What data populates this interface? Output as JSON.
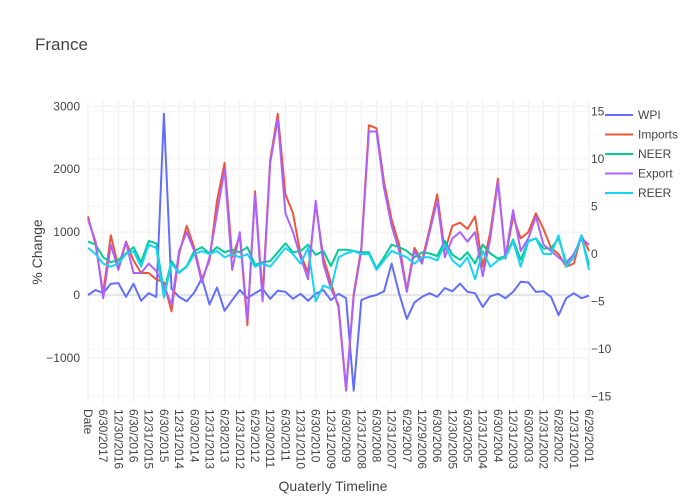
{
  "chart_data": {
    "type": "line",
    "title": "France",
    "xlabel": "Quaterly Timeline",
    "ylabel": "% Change",
    "ylim": [
      -1700,
      3100
    ],
    "y2lim": [
      -15.6,
      16.2
    ],
    "y_ticks": [
      3000,
      2000,
      1000,
      0,
      -1000
    ],
    "y_tick_labels": [
      "3000",
      "2000",
      "1000",
      "0",
      "−1000"
    ],
    "y2_ticks": [
      15,
      10,
      5,
      0,
      -5,
      -10,
      -15
    ],
    "y2_tick_labels": [
      "15",
      "10",
      "5",
      "0",
      "−5",
      "−10",
      "−15"
    ],
    "x_tick_labels": [
      "Date",
      "6/30/2017",
      "12/30/2016",
      "6/30/2016",
      "12/31/2015",
      "6/30/2015",
      "12/31/2014",
      "6/30/2014",
      "12/31/2013",
      "6/28/2013",
      "12/31/2012",
      "6/29/2012",
      "12/30/2011",
      "6/30/2011",
      "12/31/2010",
      "6/30/2010",
      "12/31/2009",
      "6/30/2009",
      "12/31/2008",
      "6/30/2008",
      "12/31/2007",
      "6/29/2007",
      "12/29/2006",
      "6/30/2006",
      "12/30/2005",
      "6/30/2005",
      "12/31/2004",
      "6/30/2004",
      "12/31/2003",
      "6/30/2003",
      "12/31/2002",
      "6/28/2002",
      "12/31/2001",
      "6/29/2001"
    ],
    "n_points": 67,
    "grid": true,
    "legend_position": "right",
    "series": [
      {
        "name": "WPI",
        "axis": "y",
        "color": "#636efa",
        "values": [
          0,
          80,
          30,
          180,
          190,
          -30,
          180,
          -90,
          30,
          -30,
          2880,
          100,
          -30,
          -100,
          40,
          270,
          -150,
          120,
          -250,
          -80,
          80,
          -50,
          30,
          100,
          -60,
          70,
          50,
          -60,
          20,
          -90,
          20,
          80,
          -80,
          20,
          -50,
          -1520,
          -80,
          -30,
          0,
          60,
          500,
          20,
          -380,
          -120,
          -30,
          30,
          -30,
          110,
          60,
          180,
          50,
          30,
          -190,
          -20,
          20,
          -50,
          50,
          210,
          200,
          50,
          60,
          -30,
          -320,
          -50,
          30,
          -50,
          -10
        ]
      },
      {
        "name": "Imports",
        "axis": "y",
        "color": "#ef553b",
        "values": [
          1250,
          800,
          30,
          950,
          450,
          850,
          550,
          350,
          350,
          250,
          200,
          -260,
          650,
          1100,
          750,
          250,
          550,
          1500,
          2100,
          600,
          950,
          -480,
          1650,
          0,
          2150,
          2880,
          1600,
          1300,
          650,
          350,
          1450,
          600,
          200,
          -200,
          -1520,
          20,
          750,
          2700,
          2650,
          1800,
          1200,
          800,
          80,
          750,
          550,
          1050,
          1600,
          700,
          1100,
          1150,
          1050,
          1250,
          450,
          1000,
          1850,
          580,
          1250,
          900,
          1000,
          1300,
          1050,
          750,
          650,
          450,
          500,
          950,
          700
        ]
      },
      {
        "name": "NEER",
        "axis": "y",
        "color": "#00cc96",
        "values": [
          850,
          800,
          600,
          520,
          560,
          660,
          760,
          520,
          860,
          820,
          40,
          540,
          360,
          460,
          700,
          760,
          660,
          760,
          680,
          720,
          680,
          760,
          480,
          520,
          540,
          680,
          820,
          680,
          700,
          800,
          640,
          700,
          460,
          720,
          720,
          700,
          680,
          680,
          420,
          600,
          800,
          760,
          700,
          600,
          680,
          660,
          620,
          860,
          640,
          560,
          680,
          500,
          800,
          660,
          580,
          620,
          880,
          560,
          860,
          900,
          740,
          740,
          900,
          520,
          640,
          920,
          480
        ]
      },
      {
        "name": "Export",
        "axis": "y",
        "color": "#ab63fa",
        "values": [
          1200,
          850,
          -50,
          800,
          400,
          840,
          350,
          350,
          500,
          380,
          150,
          -150,
          700,
          1000,
          700,
          200,
          600,
          1300,
          2000,
          400,
          1000,
          -400,
          1600,
          -100,
          2100,
          2800,
          1300,
          1000,
          600,
          250,
          1500,
          500,
          100,
          -150,
          -1500,
          -20,
          700,
          2600,
          2600,
          1700,
          1100,
          700,
          50,
          700,
          500,
          1000,
          1500,
          600,
          900,
          1000,
          850,
          1000,
          300,
          900,
          1800,
          600,
          1350,
          700,
          900,
          1250,
          800,
          700,
          600,
          500,
          650,
          900,
          800
        ]
      },
      {
        "name": "REER",
        "axis": "y",
        "color": "#19d3f3",
        "values": [
          750,
          650,
          500,
          450,
          500,
          650,
          700,
          450,
          800,
          750,
          -40,
          500,
          350,
          450,
          650,
          700,
          650,
          700,
          600,
          650,
          600,
          650,
          450,
          500,
          450,
          600,
          750,
          650,
          500,
          750,
          -100,
          150,
          100,
          600,
          660,
          700,
          650,
          650,
          400,
          550,
          700,
          650,
          600,
          500,
          600,
          600,
          550,
          800,
          550,
          450,
          600,
          250,
          700,
          450,
          550,
          600,
          850,
          450,
          850,
          900,
          650,
          650,
          950,
          450,
          600,
          950,
          400
        ]
      }
    ]
  }
}
